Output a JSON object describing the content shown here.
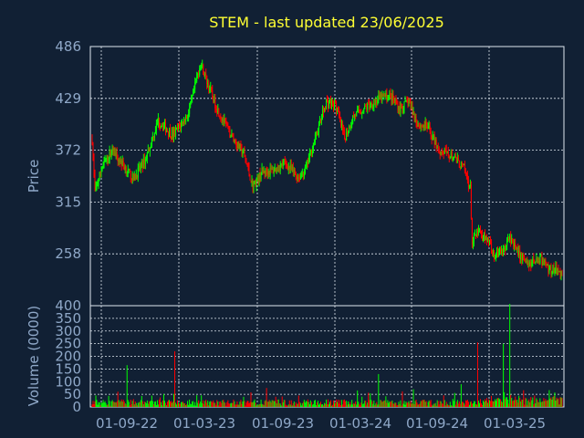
{
  "chart_data": {
    "type": "candlestick",
    "title": "STEM - last updated 23/06/2025",
    "colors": {
      "background": "#112034",
      "up": "#00ff00",
      "down": "#ff0000",
      "text": "#8fa8c8",
      "title": "#ffff33",
      "grid": "#dfe7ef"
    },
    "x_ticks": [
      "01-09-22",
      "01-03-23",
      "01-09-23",
      "01-03-24",
      "01-09-24",
      "01-03-25"
    ],
    "price_panel": {
      "ylabel": "Price",
      "ylim": [
        201,
        486
      ],
      "y_ticks": [
        "486",
        "429",
        "372",
        "315",
        "258"
      ],
      "bottom_label": "400",
      "grid": true
    },
    "volume_panel": {
      "ylabel": "Volume (0000)",
      "ylim": [
        0,
        400
      ],
      "y_ticks": [
        "350",
        "300",
        "250",
        "200",
        "150",
        "100",
        "50",
        "0"
      ],
      "grid": true
    },
    "price_path": [
      [
        0,
        384
      ],
      [
        3,
        325
      ],
      [
        10,
        352
      ],
      [
        22,
        373
      ],
      [
        35,
        354
      ],
      [
        45,
        340
      ],
      [
        58,
        362
      ],
      [
        72,
        405
      ],
      [
        88,
        388
      ],
      [
        105,
        412
      ],
      [
        118,
        468
      ],
      [
        125,
        448
      ],
      [
        135,
        420
      ],
      [
        150,
        390
      ],
      [
        165,
        368
      ],
      [
        175,
        332
      ],
      [
        185,
        348
      ],
      [
        198,
        350
      ],
      [
        210,
        358
      ],
      [
        225,
        342
      ],
      [
        232,
        350
      ],
      [
        242,
        382
      ],
      [
        255,
        425
      ],
      [
        265,
        422
      ],
      [
        275,
        385
      ],
      [
        285,
        410
      ],
      [
        300,
        420
      ],
      [
        315,
        430
      ],
      [
        325,
        432
      ],
      [
        335,
        418
      ],
      [
        345,
        425
      ],
      [
        355,
        400
      ],
      [
        365,
        398
      ],
      [
        378,
        372
      ],
      [
        392,
        365
      ],
      [
        405,
        352
      ],
      [
        412,
        330
      ],
      [
        414,
        270
      ],
      [
        420,
        282
      ],
      [
        430,
        275
      ],
      [
        438,
        258
      ],
      [
        448,
        262
      ],
      [
        456,
        275
      ],
      [
        464,
        258
      ],
      [
        475,
        248
      ],
      [
        488,
        252
      ],
      [
        497,
        242
      ],
      [
        505,
        240
      ],
      [
        512,
        236
      ]
    ],
    "volume_spikes": [
      [
        38,
        165
      ],
      [
        90,
        220
      ],
      [
        190,
        75
      ],
      [
        225,
        45
      ],
      [
        312,
        130
      ],
      [
        350,
        70
      ],
      [
        402,
        90
      ],
      [
        420,
        255
      ],
      [
        448,
        240
      ],
      [
        455,
        390
      ],
      [
        470,
        60
      ]
    ]
  }
}
